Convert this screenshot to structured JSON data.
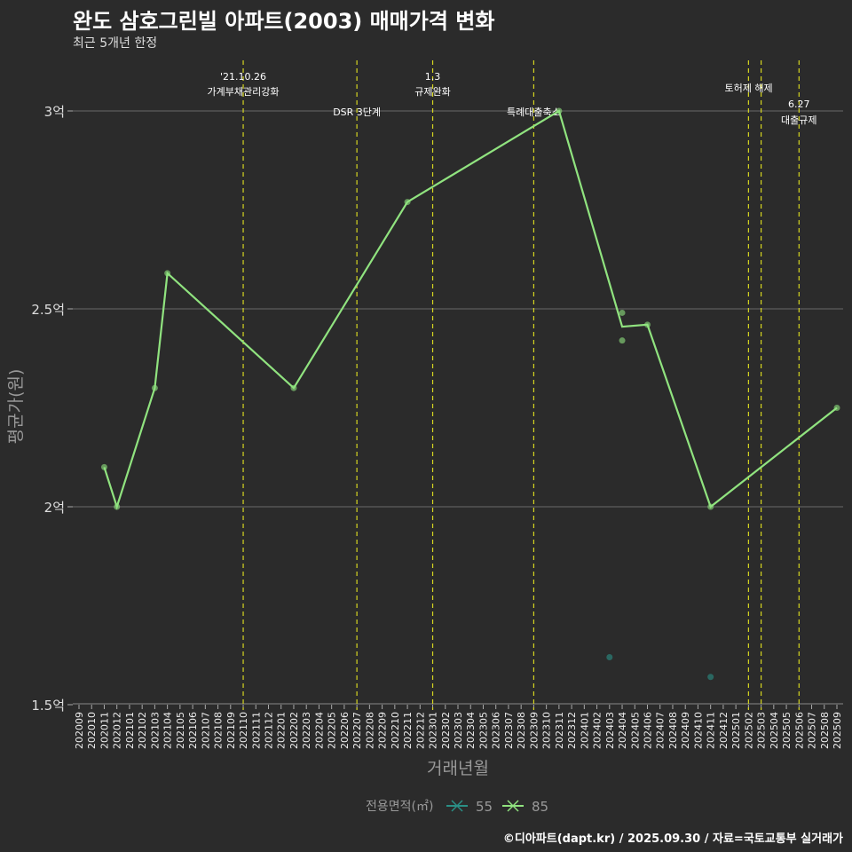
{
  "header": {
    "title": "완도 삼호그린빌 아파트(2003) 매매가격 변화",
    "subtitle": "최근 5개년 한정"
  },
  "caption": "©디아파트(dapt.kr) / 2025.09.30 / 자료=국토교통부 실거래가",
  "chart_data": {
    "type": "line",
    "title": "완도 삼호그린빌 아파트(2003) 매매가격 변화",
    "subtitle": "최근 5개년 한정",
    "xlabel": "거래년월",
    "ylabel": "평균가(원)",
    "ylim": [
      1.5,
      3.0
    ],
    "yticks": [
      1.5,
      2.0,
      2.5,
      3.0
    ],
    "ytick_labels": [
      "1.5억",
      "2억",
      "2.5억",
      "3억"
    ],
    "grid": true,
    "categories": [
      "202009",
      "202010",
      "202011",
      "202012",
      "202101",
      "202102",
      "202103",
      "202104",
      "202105",
      "202106",
      "202107",
      "202108",
      "202109",
      "202110",
      "202111",
      "202112",
      "202201",
      "202202",
      "202203",
      "202204",
      "202205",
      "202206",
      "202207",
      "202208",
      "202209",
      "202210",
      "202211",
      "202212",
      "202301",
      "202302",
      "202303",
      "202304",
      "202305",
      "202306",
      "202307",
      "202308",
      "202309",
      "202310",
      "202311",
      "202312",
      "202401",
      "202402",
      "202403",
      "202404",
      "202405",
      "202406",
      "202407",
      "202408",
      "202409",
      "202410",
      "202411",
      "202412",
      "202501",
      "202502",
      "202503",
      "202504",
      "202505",
      "202506",
      "202507",
      "202508",
      "202509"
    ],
    "legend": {
      "title": "전용면적(㎡)",
      "placement": "bottom"
    },
    "series": [
      {
        "name": "55",
        "color": "#2a8f86",
        "line": [],
        "points": [
          {
            "x": "202403",
            "y": 1.62
          },
          {
            "x": "202411",
            "y": 1.57
          }
        ]
      },
      {
        "name": "85",
        "color": "#90e37f",
        "line": [
          {
            "x": "202011",
            "y": 2.1
          },
          {
            "x": "202012",
            "y": 2.0
          },
          {
            "x": "202103",
            "y": 2.3
          },
          {
            "x": "202104",
            "y": 2.59
          },
          {
            "x": "202202",
            "y": 2.3
          },
          {
            "x": "202211",
            "y": 2.77
          },
          {
            "x": "202311",
            "y": 3.0
          },
          {
            "x": "202404",
            "y": 2.455
          },
          {
            "x": "202406",
            "y": 2.46
          },
          {
            "x": "202411",
            "y": 2.0
          },
          {
            "x": "202509",
            "y": 2.25
          }
        ],
        "points": [
          {
            "x": "202011",
            "y": 2.1
          },
          {
            "x": "202012",
            "y": 2.0
          },
          {
            "x": "202103",
            "y": 2.3
          },
          {
            "x": "202104",
            "y": 2.59
          },
          {
            "x": "202202",
            "y": 2.3
          },
          {
            "x": "202211",
            "y": 2.77
          },
          {
            "x": "202311",
            "y": 3.0
          },
          {
            "x": "202404",
            "y": 2.49
          },
          {
            "x": "202404",
            "y": 2.42
          },
          {
            "x": "202406",
            "y": 2.46
          },
          {
            "x": "202411",
            "y": 2.0
          },
          {
            "x": "202509",
            "y": 2.25
          }
        ]
      }
    ],
    "annotations": [
      {
        "x": "202110",
        "lines": [
          "'21.10.26",
          "가계부채관리강화"
        ],
        "row": 0
      },
      {
        "x": "202207",
        "lines": [
          "DSR 3단계"
        ],
        "row": 2
      },
      {
        "x": "202301",
        "lines": [
          "1.3",
          "규제완화"
        ],
        "row": 0
      },
      {
        "x": "202309",
        "lines": [
          "특례대출축소"
        ],
        "row": 2
      },
      {
        "x": "202502",
        "lines": [],
        "row": 0
      },
      {
        "x": "202503",
        "lines": [
          "토허제 해제"
        ],
        "row": 1,
        "offset": "left"
      },
      {
        "x": "202506",
        "lines": [
          "6.27",
          "대출규제"
        ],
        "row": 3
      }
    ]
  }
}
